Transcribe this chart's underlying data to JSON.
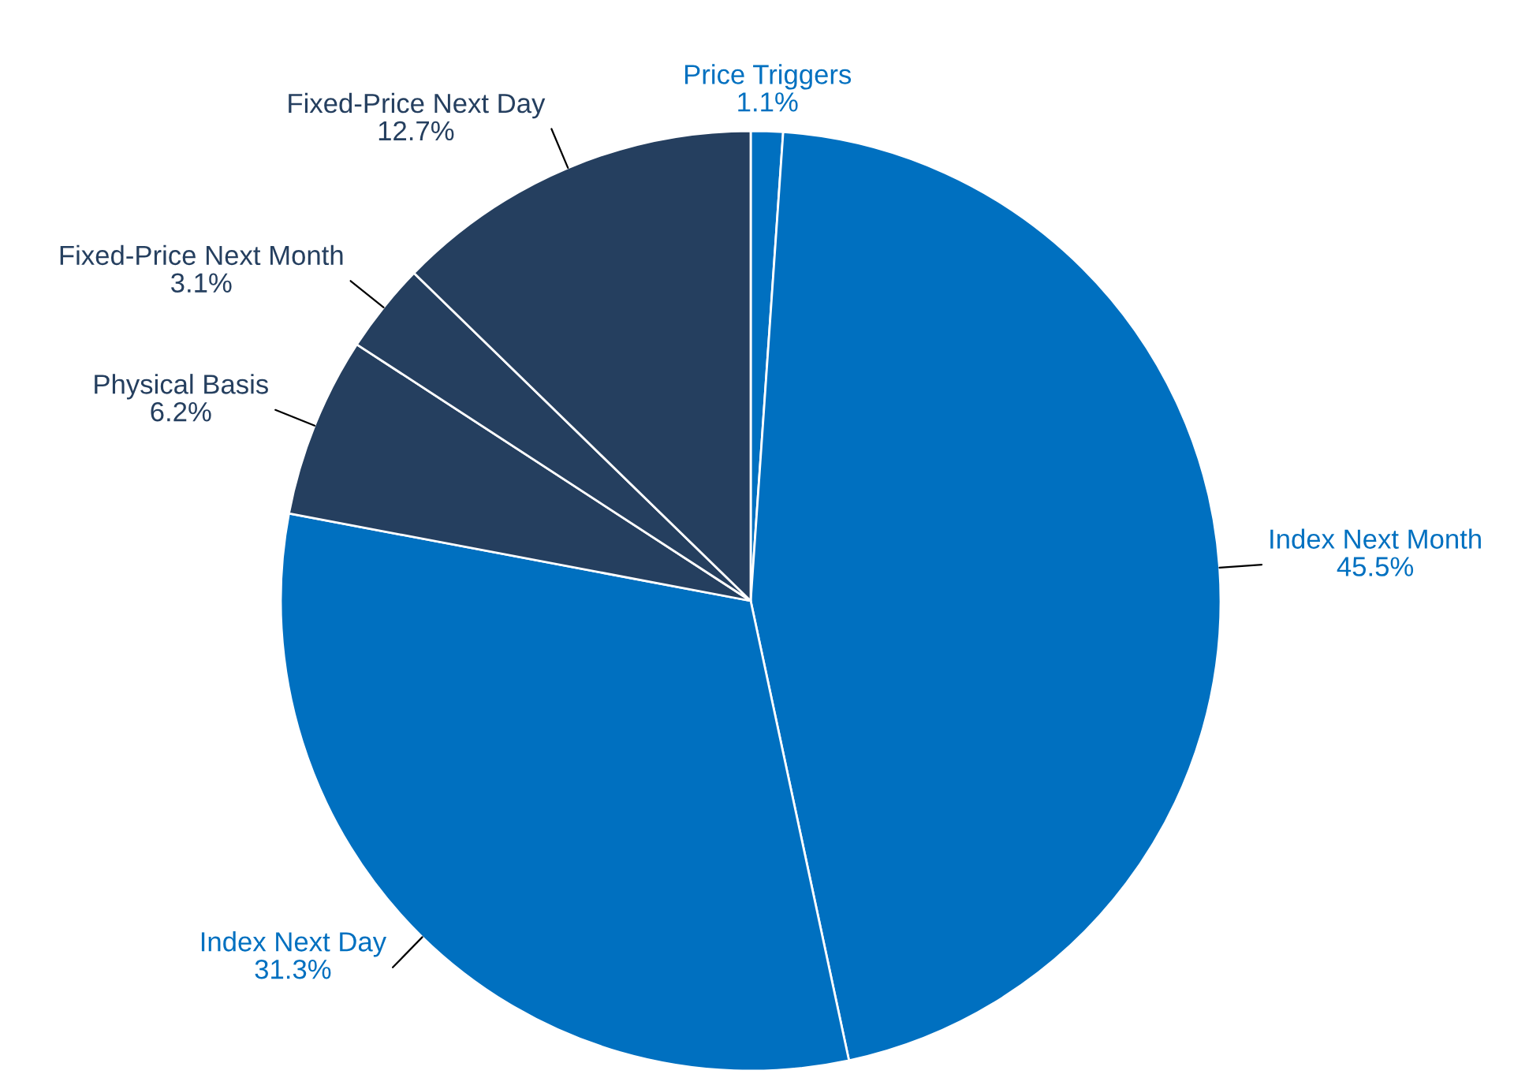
{
  "chart_data": {
    "type": "pie",
    "categories": [
      "Price Triggers",
      "Index Next Month",
      "Index Next Day",
      "Physical Basis",
      "Fixed-Price Next Month",
      "Fixed-Price Next Day"
    ],
    "values": [
      1.1,
      45.5,
      31.3,
      6.2,
      3.1,
      12.7
    ],
    "colors": [
      "#0070c0",
      "#0070c0",
      "#0070c0",
      "#253f5f",
      "#253f5f",
      "#253f5f"
    ],
    "value_labels": [
      "1.1%",
      "45.5%",
      "31.3%",
      "6.2%",
      "3.1%",
      "12.7%"
    ]
  }
}
